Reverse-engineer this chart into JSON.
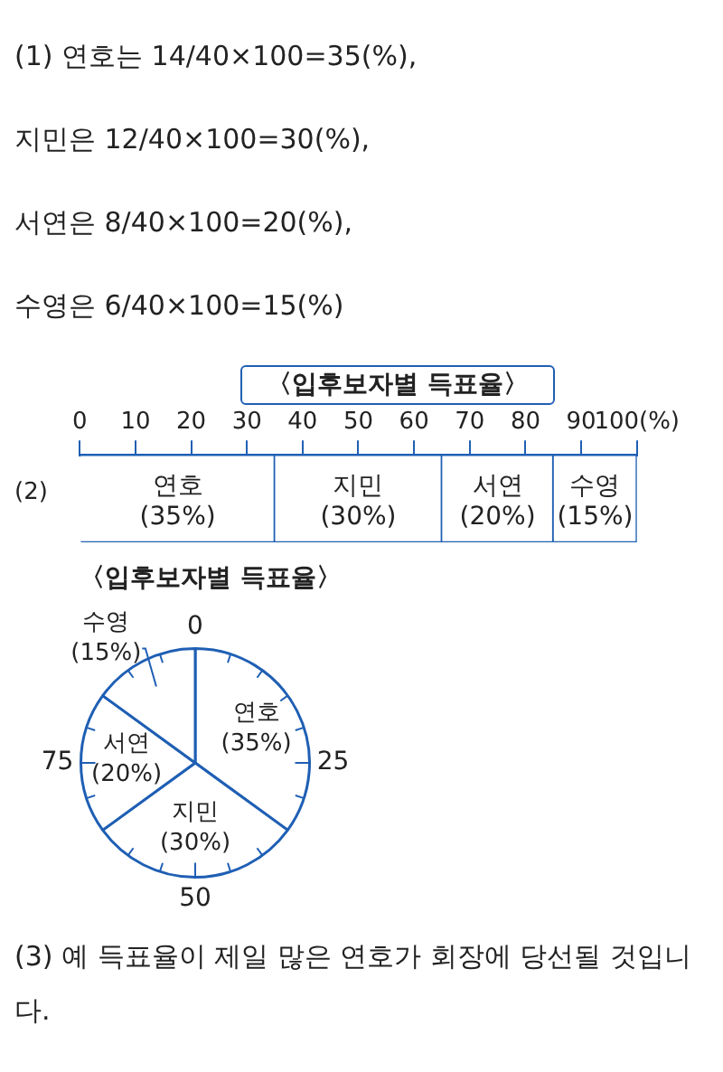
{
  "chart_data": [
    {
      "type": "bar",
      "orientation": "horizontal",
      "stacked": true,
      "title": "〈입후보자별 득표율〉",
      "categories": [
        null
      ],
      "series": [
        {
          "name": "연호",
          "color": "#ffffff",
          "values": [
            35
          ],
          "value_labels": [
            "(35%)"
          ]
        },
        {
          "name": "지민",
          "color": "#ffffff",
          "values": [
            30
          ],
          "value_labels": [
            "(30%)"
          ]
        },
        {
          "name": "서연",
          "color": "#ffffff",
          "values": [
            20
          ],
          "value_labels": [
            "(20%)"
          ]
        },
        {
          "name": "수영",
          "color": "#ffffff",
          "values": [
            15
          ],
          "value_labels": [
            "(15%)"
          ]
        }
      ],
      "xlim": [
        0,
        100
      ],
      "xticks": [
        0,
        10,
        20,
        30,
        40,
        50,
        60,
        70,
        80,
        90,
        {
          "value": 100,
          "label": "100(%)"
        }
      ],
      "grid": false,
      "annotations": [
        "(1) 연호는 14/40×100=35(%),",
        "지민은 12/40×100=30(%),",
        "서연은 8/40×100=20(%),",
        "수영은 6/40×100=15(%)",
        "(2)"
      ]
    },
    {
      "type": "pie",
      "title": "〈입후보자별 득표율〉",
      "categories": [
        "연호",
        "지민",
        "서연",
        "수영"
      ],
      "values": [
        35,
        30,
        20,
        15
      ],
      "colors": [
        "#ffffff",
        "#ffffff",
        "#ffffff",
        "#ffffff"
      ],
      "value_labels": [
        "(35%)",
        "(30%)",
        "(20%)",
        "(15%)"
      ],
      "annotations": [
        "0",
        "25",
        "50",
        "75",
        "(3) 예 득표율이 제일 많은 연호가 회장에 당선될 것입니다."
      ]
    }
  ]
}
